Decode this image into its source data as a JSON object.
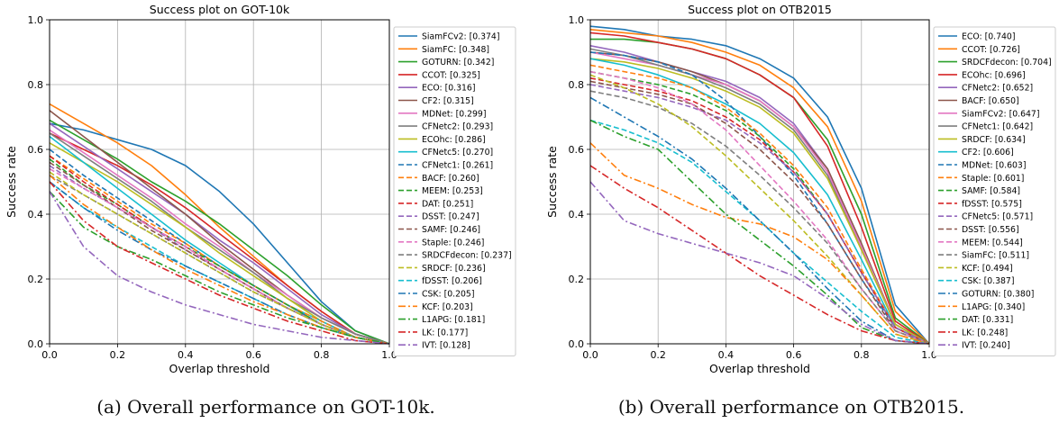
{
  "chart_data": [
    {
      "type": "line",
      "title": "Success plot on GOT-10k",
      "xlabel": "Overlap threshold",
      "ylabel": "Success rate",
      "xlim": [
        0,
        1
      ],
      "ylim": [
        0,
        1
      ],
      "xticks": [
        "0.0",
        "0.2",
        "0.4",
        "0.6",
        "0.8",
        "1.0"
      ],
      "yticks": [
        "0.0",
        "0.2",
        "0.4",
        "0.6",
        "0.8",
        "1.0"
      ],
      "grid": true,
      "legend_position": "right",
      "x": [
        0,
        0.1,
        0.2,
        0.3,
        0.4,
        0.5,
        0.6,
        0.7,
        0.8,
        0.9,
        1.0
      ],
      "series": [
        {
          "name": "SiamFCv2: [0.374]",
          "color": "#1f77b4",
          "style": "solid",
          "values": [
            0.68,
            0.66,
            0.63,
            0.6,
            0.55,
            0.47,
            0.37,
            0.25,
            0.13,
            0.04,
            0.0
          ]
        },
        {
          "name": "SiamFC: [0.348]",
          "color": "#ff7f0e",
          "style": "solid",
          "values": [
            0.74,
            0.68,
            0.62,
            0.55,
            0.46,
            0.36,
            0.27,
            0.18,
            0.1,
            0.03,
            0.0
          ]
        },
        {
          "name": "GOTURN: [0.342]",
          "color": "#2ca02c",
          "style": "solid",
          "values": [
            0.69,
            0.63,
            0.57,
            0.5,
            0.44,
            0.37,
            0.29,
            0.21,
            0.12,
            0.04,
            0.0
          ]
        },
        {
          "name": "CCOT: [0.325]",
          "color": "#d62728",
          "style": "solid",
          "values": [
            0.65,
            0.6,
            0.55,
            0.49,
            0.42,
            0.34,
            0.26,
            0.18,
            0.1,
            0.03,
            0.0
          ]
        },
        {
          "name": "ECO: [0.316]",
          "color": "#9467bd",
          "style": "solid",
          "values": [
            0.68,
            0.61,
            0.54,
            0.47,
            0.4,
            0.32,
            0.25,
            0.17,
            0.09,
            0.03,
            0.0
          ]
        },
        {
          "name": "CF2: [0.315]",
          "color": "#8c564b",
          "style": "solid",
          "values": [
            0.72,
            0.64,
            0.56,
            0.48,
            0.4,
            0.31,
            0.23,
            0.15,
            0.08,
            0.03,
            0.0
          ]
        },
        {
          "name": "MDNet: [0.299]",
          "color": "#e377c2",
          "style": "solid",
          "values": [
            0.66,
            0.59,
            0.52,
            0.45,
            0.37,
            0.3,
            0.22,
            0.15,
            0.08,
            0.03,
            0.0
          ]
        },
        {
          "name": "CFNetc2: [0.293]",
          "color": "#7f7f7f",
          "style": "solid",
          "values": [
            0.65,
            0.58,
            0.51,
            0.44,
            0.36,
            0.29,
            0.22,
            0.14,
            0.08,
            0.03,
            0.0
          ]
        },
        {
          "name": "ECOhc: [0.286]",
          "color": "#bcbd22",
          "style": "solid",
          "values": [
            0.62,
            0.56,
            0.5,
            0.43,
            0.36,
            0.28,
            0.21,
            0.14,
            0.07,
            0.02,
            0.0
          ]
        },
        {
          "name": "CFNetc5: [0.270]",
          "color": "#17becf",
          "style": "solid",
          "values": [
            0.64,
            0.56,
            0.48,
            0.4,
            0.32,
            0.25,
            0.18,
            0.12,
            0.07,
            0.02,
            0.0
          ]
        },
        {
          "name": "CFNetc1: [0.261]",
          "color": "#1f77b4",
          "style": "dashed",
          "values": [
            0.6,
            0.52,
            0.45,
            0.38,
            0.31,
            0.24,
            0.18,
            0.12,
            0.06,
            0.02,
            0.0
          ]
        },
        {
          "name": "BACF: [0.260]",
          "color": "#ff7f0e",
          "style": "dashed",
          "values": [
            0.58,
            0.51,
            0.44,
            0.37,
            0.31,
            0.24,
            0.18,
            0.12,
            0.07,
            0.02,
            0.0
          ]
        },
        {
          "name": "MEEM: [0.253]",
          "color": "#2ca02c",
          "style": "dashed",
          "values": [
            0.57,
            0.49,
            0.43,
            0.36,
            0.3,
            0.24,
            0.18,
            0.12,
            0.06,
            0.02,
            0.0
          ]
        },
        {
          "name": "DAT: [0.251]",
          "color": "#d62728",
          "style": "dashed",
          "values": [
            0.58,
            0.5,
            0.43,
            0.36,
            0.3,
            0.23,
            0.17,
            0.11,
            0.06,
            0.02,
            0.0
          ]
        },
        {
          "name": "DSST: [0.247]",
          "color": "#9467bd",
          "style": "dashed",
          "values": [
            0.55,
            0.48,
            0.42,
            0.36,
            0.29,
            0.23,
            0.17,
            0.11,
            0.06,
            0.02,
            0.0
          ]
        },
        {
          "name": "SAMF: [0.246]",
          "color": "#8c564b",
          "style": "dashed",
          "values": [
            0.56,
            0.49,
            0.42,
            0.35,
            0.29,
            0.23,
            0.17,
            0.11,
            0.06,
            0.02,
            0.0
          ]
        },
        {
          "name": "Staple: [0.246]",
          "color": "#e377c2",
          "style": "dashed",
          "values": [
            0.54,
            0.48,
            0.42,
            0.36,
            0.3,
            0.23,
            0.17,
            0.11,
            0.06,
            0.02,
            0.0
          ]
        },
        {
          "name": "SRDCFdecon: [0.237]",
          "color": "#7f7f7f",
          "style": "dashed",
          "values": [
            0.52,
            0.46,
            0.4,
            0.34,
            0.28,
            0.22,
            0.16,
            0.11,
            0.06,
            0.02,
            0.0
          ]
        },
        {
          "name": "SRDCF: [0.236]",
          "color": "#bcbd22",
          "style": "dashed",
          "values": [
            0.53,
            0.46,
            0.4,
            0.34,
            0.28,
            0.22,
            0.16,
            0.11,
            0.06,
            0.02,
            0.0
          ]
        },
        {
          "name": "fDSST: [0.206]",
          "color": "#17becf",
          "style": "dashed",
          "values": [
            0.5,
            0.42,
            0.36,
            0.3,
            0.24,
            0.19,
            0.14,
            0.09,
            0.05,
            0.02,
            0.0
          ]
        },
        {
          "name": "CSK: [0.205]",
          "color": "#1f77b4",
          "style": "dashdot",
          "values": [
            0.5,
            0.42,
            0.35,
            0.29,
            0.24,
            0.19,
            0.14,
            0.09,
            0.05,
            0.02,
            0.0
          ]
        },
        {
          "name": "KCF: [0.203]",
          "color": "#ff7f0e",
          "style": "dashdot",
          "values": [
            0.52,
            0.43,
            0.36,
            0.29,
            0.23,
            0.18,
            0.13,
            0.09,
            0.05,
            0.02,
            0.0
          ]
        },
        {
          "name": "L1APG: [0.181]",
          "color": "#2ca02c",
          "style": "dashdot",
          "values": [
            0.47,
            0.36,
            0.3,
            0.26,
            0.21,
            0.16,
            0.12,
            0.08,
            0.05,
            0.02,
            0.0
          ]
        },
        {
          "name": "LK: [0.177]",
          "color": "#d62728",
          "style": "dashdot",
          "values": [
            0.5,
            0.38,
            0.3,
            0.25,
            0.2,
            0.15,
            0.11,
            0.07,
            0.04,
            0.01,
            0.0
          ]
        },
        {
          "name": "IVT: [0.128]",
          "color": "#9467bd",
          "style": "dashdot",
          "values": [
            0.47,
            0.3,
            0.21,
            0.16,
            0.12,
            0.09,
            0.06,
            0.04,
            0.02,
            0.01,
            0.0
          ]
        }
      ]
    },
    {
      "type": "line",
      "title": "Success plot on OTB2015",
      "xlabel": "Overlap threshold",
      "ylabel": "Success rate",
      "xlim": [
        0,
        1
      ],
      "ylim": [
        0,
        1
      ],
      "xticks": [
        "0.0",
        "0.2",
        "0.4",
        "0.6",
        "0.8",
        "1.0"
      ],
      "yticks": [
        "0.0",
        "0.2",
        "0.4",
        "0.6",
        "0.8",
        "1.0"
      ],
      "grid": true,
      "legend_position": "right",
      "x": [
        0,
        0.1,
        0.2,
        0.3,
        0.4,
        0.5,
        0.6,
        0.7,
        0.8,
        0.9,
        1.0
      ],
      "series": [
        {
          "name": "ECO: [0.740]",
          "color": "#1f77b4",
          "style": "solid",
          "values": [
            0.98,
            0.97,
            0.95,
            0.94,
            0.92,
            0.88,
            0.82,
            0.7,
            0.48,
            0.12,
            0.0
          ]
        },
        {
          "name": "CCOT: [0.726]",
          "color": "#ff7f0e",
          "style": "solid",
          "values": [
            0.97,
            0.96,
            0.95,
            0.93,
            0.9,
            0.86,
            0.79,
            0.67,
            0.44,
            0.1,
            0.0
          ]
        },
        {
          "name": "SRDCFdecon: [0.704]",
          "color": "#2ca02c",
          "style": "solid",
          "values": [
            0.94,
            0.94,
            0.93,
            0.91,
            0.88,
            0.83,
            0.76,
            0.63,
            0.4,
            0.08,
            0.0
          ]
        },
        {
          "name": "ECOhc: [0.696]",
          "color": "#d62728",
          "style": "solid",
          "values": [
            0.96,
            0.95,
            0.93,
            0.91,
            0.88,
            0.83,
            0.76,
            0.61,
            0.36,
            0.07,
            0.0
          ]
        },
        {
          "name": "CFNetc2: [0.652]",
          "color": "#9467bd",
          "style": "solid",
          "values": [
            0.92,
            0.9,
            0.87,
            0.84,
            0.81,
            0.76,
            0.68,
            0.54,
            0.3,
            0.06,
            0.0
          ]
        },
        {
          "name": "BACF: [0.650]",
          "color": "#8c564b",
          "style": "solid",
          "values": [
            0.9,
            0.89,
            0.87,
            0.84,
            0.8,
            0.75,
            0.67,
            0.54,
            0.31,
            0.06,
            0.0
          ]
        },
        {
          "name": "SiamFCv2: [0.647]",
          "color": "#e377c2",
          "style": "solid",
          "values": [
            0.9,
            0.88,
            0.86,
            0.83,
            0.8,
            0.75,
            0.67,
            0.53,
            0.3,
            0.06,
            0.0
          ]
        },
        {
          "name": "CFNetc1: [0.642]",
          "color": "#7f7f7f",
          "style": "solid",
          "values": [
            0.91,
            0.89,
            0.86,
            0.83,
            0.79,
            0.74,
            0.66,
            0.52,
            0.29,
            0.06,
            0.0
          ]
        },
        {
          "name": "SRDCF: [0.634]",
          "color": "#bcbd22",
          "style": "solid",
          "values": [
            0.88,
            0.87,
            0.85,
            0.82,
            0.78,
            0.73,
            0.65,
            0.51,
            0.29,
            0.06,
            0.0
          ]
        },
        {
          "name": "CF2: [0.606]",
          "color": "#17becf",
          "style": "solid",
          "values": [
            0.88,
            0.86,
            0.83,
            0.79,
            0.74,
            0.68,
            0.59,
            0.46,
            0.26,
            0.05,
            0.0
          ]
        },
        {
          "name": "MDNet: [0.603]",
          "color": "#1f77b4",
          "style": "dashed",
          "values": [
            0.9,
            0.89,
            0.87,
            0.83,
            0.75,
            0.64,
            0.52,
            0.37,
            0.2,
            0.05,
            0.0
          ]
        },
        {
          "name": "Staple: [0.601]",
          "color": "#ff7f0e",
          "style": "dashed",
          "values": [
            0.86,
            0.84,
            0.82,
            0.79,
            0.73,
            0.65,
            0.55,
            0.42,
            0.23,
            0.05,
            0.0
          ]
        },
        {
          "name": "SAMF: [0.584]",
          "color": "#2ca02c",
          "style": "dashed",
          "values": [
            0.84,
            0.82,
            0.8,
            0.77,
            0.72,
            0.64,
            0.54,
            0.4,
            0.22,
            0.05,
            0.0
          ]
        },
        {
          "name": "fDSST: [0.575]",
          "color": "#d62728",
          "style": "dashed",
          "values": [
            0.82,
            0.8,
            0.78,
            0.75,
            0.7,
            0.63,
            0.53,
            0.4,
            0.22,
            0.05,
            0.0
          ]
        },
        {
          "name": "CFNetc5: [0.571]",
          "color": "#9467bd",
          "style": "dashed",
          "values": [
            0.8,
            0.78,
            0.76,
            0.73,
            0.69,
            0.62,
            0.53,
            0.4,
            0.22,
            0.05,
            0.0
          ]
        },
        {
          "name": "DSST: [0.556]",
          "color": "#8c564b",
          "style": "dashed",
          "values": [
            0.81,
            0.79,
            0.77,
            0.74,
            0.68,
            0.6,
            0.5,
            0.37,
            0.2,
            0.04,
            0.0
          ]
        },
        {
          "name": "MEEM: [0.544]",
          "color": "#e377c2",
          "style": "dashed",
          "values": [
            0.84,
            0.82,
            0.79,
            0.74,
            0.66,
            0.55,
            0.44,
            0.32,
            0.17,
            0.04,
            0.0
          ]
        },
        {
          "name": "SiamFC: [0.511]",
          "color": "#7f7f7f",
          "style": "dashed",
          "values": [
            0.78,
            0.76,
            0.73,
            0.68,
            0.61,
            0.52,
            0.42,
            0.31,
            0.17,
            0.04,
            0.0
          ]
        },
        {
          "name": "KCF: [0.494]",
          "color": "#bcbd22",
          "style": "dashed",
          "values": [
            0.83,
            0.79,
            0.74,
            0.67,
            0.58,
            0.48,
            0.38,
            0.27,
            0.15,
            0.03,
            0.0
          ]
        },
        {
          "name": "CSK: [0.387]",
          "color": "#17becf",
          "style": "dashed",
          "values": [
            0.69,
            0.66,
            0.62,
            0.56,
            0.47,
            0.38,
            0.28,
            0.19,
            0.1,
            0.02,
            0.0
          ]
        },
        {
          "name": "GOTURN: [0.380]",
          "color": "#1f77b4",
          "style": "dashdot",
          "values": [
            0.76,
            0.7,
            0.64,
            0.57,
            0.48,
            0.38,
            0.28,
            0.17,
            0.07,
            0.01,
            0.0
          ]
        },
        {
          "name": "L1APG: [0.340]",
          "color": "#ff7f0e",
          "style": "dashdot",
          "values": [
            0.62,
            0.52,
            0.48,
            0.43,
            0.39,
            0.37,
            0.33,
            0.26,
            0.15,
            0.03,
            0.0
          ]
        },
        {
          "name": "DAT: [0.331]",
          "color": "#2ca02c",
          "style": "dashdot",
          "values": [
            0.69,
            0.64,
            0.6,
            0.5,
            0.4,
            0.32,
            0.24,
            0.15,
            0.05,
            0.01,
            0.0
          ]
        },
        {
          "name": "LK: [0.248]",
          "color": "#d62728",
          "style": "dashdot",
          "values": [
            0.55,
            0.48,
            0.42,
            0.35,
            0.28,
            0.21,
            0.15,
            0.09,
            0.04,
            0.01,
            0.0
          ]
        },
        {
          "name": "IVT: [0.240]",
          "color": "#9467bd",
          "style": "dashdot",
          "values": [
            0.5,
            0.38,
            0.34,
            0.31,
            0.28,
            0.25,
            0.21,
            0.14,
            0.06,
            0.01,
            0.0
          ]
        }
      ]
    }
  ],
  "captions": {
    "a": "(a) Overall performance on GOT-10k.",
    "b": "(b) Overall performance on OTB2015."
  }
}
